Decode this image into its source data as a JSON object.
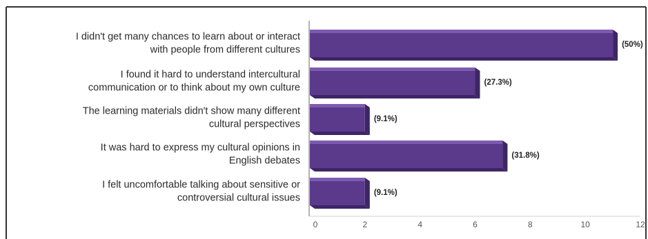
{
  "chart_data": {
    "type": "bar",
    "orientation": "horizontal",
    "title": "",
    "xlabel": "",
    "ylabel": "",
    "xlim": [
      0,
      12
    ],
    "ticks": [
      0,
      2,
      4,
      6,
      8,
      10,
      12
    ],
    "grid": false,
    "categories": [
      [
        "I didn't get many chances to learn about or interact",
        "with people from different cultures"
      ],
      [
        "I found it hard to understand intercultural",
        "communication or to think about my own culture"
      ],
      [
        "The learning materials didn't show many different",
        "cultural perspectives"
      ],
      [
        "It was hard to express my cultural opinions in",
        "English debates"
      ],
      [
        "I felt uncomfortable talking about sensitive or",
        "controversial cultural issues"
      ]
    ],
    "values": [
      11,
      6,
      2,
      7,
      2
    ],
    "value_labels": [
      "(50%)",
      "(27.3%)",
      "(9.1%)",
      "(31.8%)",
      "(9.1%)"
    ],
    "colors": {
      "bar_front": "#5b3a8c",
      "bar_top": "#7c5bb0",
      "bar_side": "#3e2566",
      "axis": "#9a9a9a",
      "frame": "#333333"
    }
  }
}
